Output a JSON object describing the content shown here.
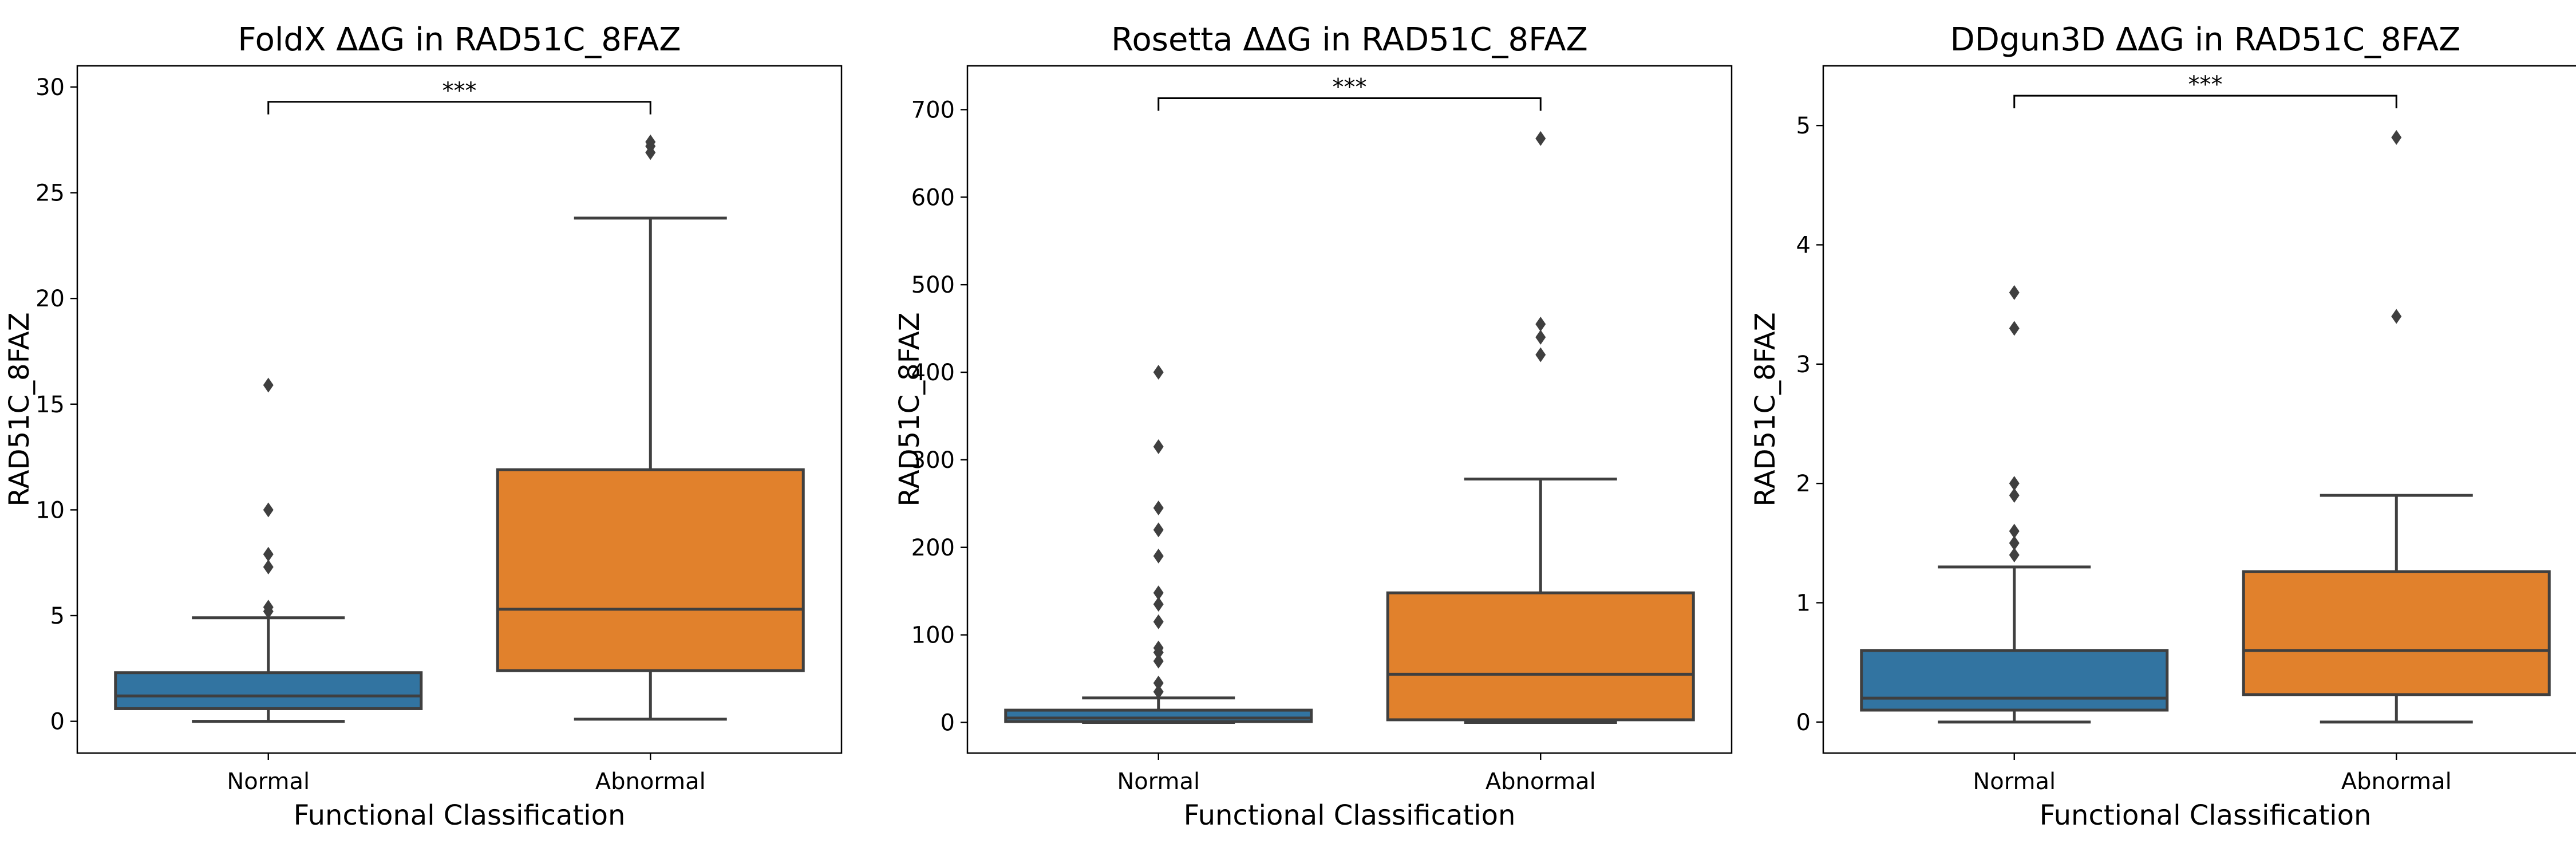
{
  "chart_data": [
    {
      "type": "box",
      "title": "FoldX ΔΔG in RAD51C_8FAZ",
      "xlabel": "Functional Classification",
      "ylabel": "RAD51C_8FAZ",
      "categories": [
        "Normal",
        "Abnormal"
      ],
      "ylim": [
        -1.5,
        31
      ],
      "yticks": [
        0,
        5,
        10,
        15,
        20,
        25,
        30
      ],
      "boxes": [
        {
          "category": "Normal",
          "whisker_low": 0,
          "q1": 0.6,
          "median": 1.2,
          "q3": 2.3,
          "whisker_high": 4.9,
          "outliers": [
            5.2,
            5.4,
            7.3,
            7.9,
            10.0,
            15.9
          ]
        },
        {
          "category": "Abnormal",
          "whisker_low": 0.1,
          "q1": 2.4,
          "median": 5.3,
          "q3": 11.9,
          "whisker_high": 23.8,
          "outliers": [
            26.9,
            27.2,
            27.4
          ]
        }
      ],
      "significance": {
        "label": "***",
        "y": 29.3
      }
    },
    {
      "type": "box",
      "title": "Rosetta ΔΔG in RAD51C_8FAZ",
      "xlabel": "Functional Classification",
      "ylabel": "RAD51C_8FAZ",
      "categories": [
        "Normal",
        "Abnormal"
      ],
      "ylim": [
        -35,
        750
      ],
      "yticks": [
        0,
        100,
        200,
        300,
        400,
        500,
        600,
        700
      ],
      "boxes": [
        {
          "category": "Normal",
          "whisker_low": 0,
          "q1": 1,
          "median": 5,
          "q3": 14,
          "whisker_high": 28,
          "outliers": [
            35,
            45,
            70,
            80,
            85,
            115,
            135,
            148,
            190,
            220,
            245,
            315,
            400
          ]
        },
        {
          "category": "Abnormal",
          "whisker_low": 0,
          "q1": 3,
          "median": 55,
          "q3": 148,
          "whisker_high": 278,
          "outliers": [
            420,
            440,
            455,
            667
          ]
        }
      ],
      "significance": {
        "label": "***",
        "y": 713
      }
    },
    {
      "type": "box",
      "title": "DDgun3D ΔΔG in RAD51C_8FAZ",
      "xlabel": "Functional Classification",
      "ylabel": "RAD51C_8FAZ",
      "categories": [
        "Normal",
        "Abnormal"
      ],
      "ylim": [
        -0.26,
        5.5
      ],
      "yticks": [
        0,
        1,
        2,
        3,
        4,
        5
      ],
      "boxes": [
        {
          "category": "Normal",
          "whisker_low": 0,
          "q1": 0.1,
          "median": 0.2,
          "q3": 0.6,
          "whisker_high": 1.3,
          "outliers": [
            1.4,
            1.5,
            1.6,
            1.9,
            2.0,
            3.3,
            3.6
          ]
        },
        {
          "category": "Abnormal",
          "whisker_low": 0,
          "q1": 0.23,
          "median": 0.6,
          "q3": 1.26,
          "whisker_high": 1.9,
          "outliers": [
            3.4,
            4.9
          ]
        }
      ],
      "significance": {
        "label": "***",
        "y": 5.25
      }
    }
  ],
  "colors": {
    "normal": "#3274a1",
    "abnormal": "#e1812c",
    "line": "#3f3f3f",
    "frame": "#000000"
  }
}
